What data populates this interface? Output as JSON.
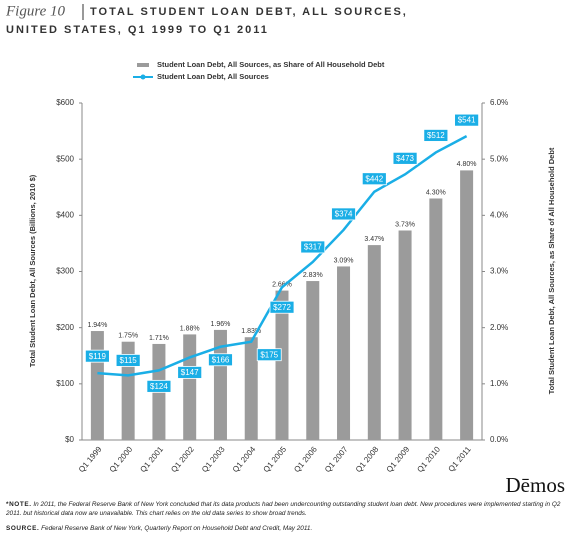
{
  "chart_data": {
    "type": "combo",
    "figure_label": "Figure 10",
    "title": [
      "TOTAL STUDENT LOAN DEBT, ALL SOURCES,",
      "UNITED STATES, Q1 1999 TO Q1 2011"
    ],
    "y_label": "Total Student Loan Debt, All Sources (Billions, 2010 $)",
    "y2_label": "Total Student Loan Debt, All Sources,  as Share of All Household Debt",
    "categories": [
      "Q1 1999",
      "Q1 2000",
      "Q1 2001",
      "Q1 2002",
      "Q1 2003",
      "Q1 2004",
      "Q1 2005",
      "Q1 2006",
      "Q1 2007",
      "Q1 2008",
      "Q1 2009",
      "Q1 2010",
      "Q1 2011"
    ],
    "series": [
      {
        "name": "Student Loan Debt, All Sources, as Share of All Household Debt",
        "type": "bar",
        "axis": "y2",
        "color": "#9b9b9b",
        "values": [
          1.94,
          1.75,
          1.71,
          1.88,
          1.96,
          1.83,
          2.66,
          2.83,
          3.09,
          3.47,
          3.73,
          4.3,
          4.8
        ],
        "value_labels": [
          "1.94%",
          "1.75%",
          "1.71%",
          "1.88%",
          "1.96%",
          "1.83%",
          "2.66%",
          "2.83%",
          "3.09%",
          "3.47%",
          "3.73%",
          "4.30%",
          "4.80%"
        ]
      },
      {
        "name": "Student Loan Debt, All Sources",
        "type": "line",
        "axis": "y",
        "color": "#1aaee6",
        "values": [
          119,
          115,
          124,
          147,
          166,
          175,
          272,
          317,
          374,
          442,
          473,
          512,
          541
        ],
        "value_labels": [
          "$119",
          "$115",
          "$124",
          "$147",
          "$166",
          "$175",
          "$272",
          "$317",
          "$374",
          "$442",
          "$473",
          "$512",
          "$541"
        ]
      }
    ],
    "ylim": [
      0,
      600
    ],
    "yticks": [
      {
        "value": 0,
        "label": "$0"
      },
      {
        "value": 100,
        "label": "$100"
      },
      {
        "value": 200,
        "label": "$200"
      },
      {
        "value": 300,
        "label": "$300"
      },
      {
        "value": 400,
        "label": "$400"
      },
      {
        "value": 500,
        "label": "$500"
      },
      {
        "value": 600,
        "label": "$600"
      }
    ],
    "y2lim": [
      0,
      6
    ],
    "y2ticks": [
      {
        "value": 0,
        "label": "0.0%"
      },
      {
        "value": 1,
        "label": "1.0%"
      },
      {
        "value": 2,
        "label": "2.0%"
      },
      {
        "value": 3,
        "label": "3.0%"
      },
      {
        "value": 4,
        "label": "4.0%"
      },
      {
        "value": 5,
        "label": "5.0%"
      },
      {
        "value": 6,
        "label": "6.0%"
      }
    ],
    "grid": false,
    "logo": "Dēmos",
    "note_label": "*NOTE.",
    "note": "In 2011, the Federal Reserve Bank of New York concluded that its data products  had been undercounting outstanding student loan debt. New procedures were implemented starting in Q2 2011. but historical data now are unavailable. This chart relies on the old data series to show broad trends.",
    "source_label": "SOURCE.",
    "source": "Federal Reserve Bank of New York, Quarterly Report on Household Debt and Credit, May 2011."
  }
}
